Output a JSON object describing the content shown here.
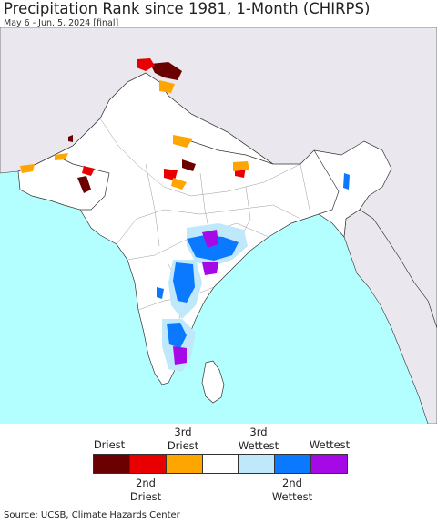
{
  "header": {
    "title": "Precipitation Rank since 1981, 1-Month (CHIRPS)",
    "subtitle": "May 6 - Jun. 5, 2024 [final]"
  },
  "map": {
    "colors": {
      "ocean": "#b3ffff",
      "land": "#ffffff",
      "outside_land": "#eae8ee",
      "border": "#333333"
    }
  },
  "legend": {
    "top_labels": [
      "Driest",
      "3rd\nDriest",
      "3rd\nWettest",
      "Wettest"
    ],
    "bottom_labels": [
      "2nd\nDriest",
      "2nd\nWettest"
    ],
    "swatches": [
      {
        "rank": "Driest",
        "color": "#6b0000"
      },
      {
        "rank": "2nd Driest",
        "color": "#e80000"
      },
      {
        "rank": "3rd Driest",
        "color": "#ffa500"
      },
      {
        "rank": "Normal",
        "color": "#ffffff"
      },
      {
        "rank": "3rd Wettest",
        "color": "#bfe8fa"
      },
      {
        "rank": "2nd Wettest",
        "color": "#0a78ff"
      },
      {
        "rank": "Wettest",
        "color": "#a50ae6"
      }
    ]
  },
  "footer": {
    "source": "Source: UCSB, Climate Hazards Center"
  }
}
